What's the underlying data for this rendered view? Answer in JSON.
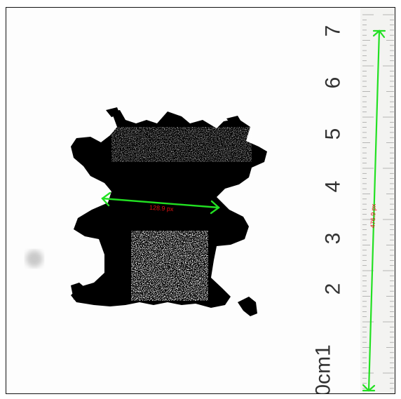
{
  "ruler": {
    "labels": [
      "0cm1",
      "2",
      "3",
      "4",
      "5",
      "6",
      "7"
    ]
  },
  "measurements": {
    "width_label": "128.9 px",
    "length_label": "476.9 px"
  },
  "colors": {
    "arrow": "#22e022",
    "label": "#e01010",
    "specimen": "#000000"
  }
}
